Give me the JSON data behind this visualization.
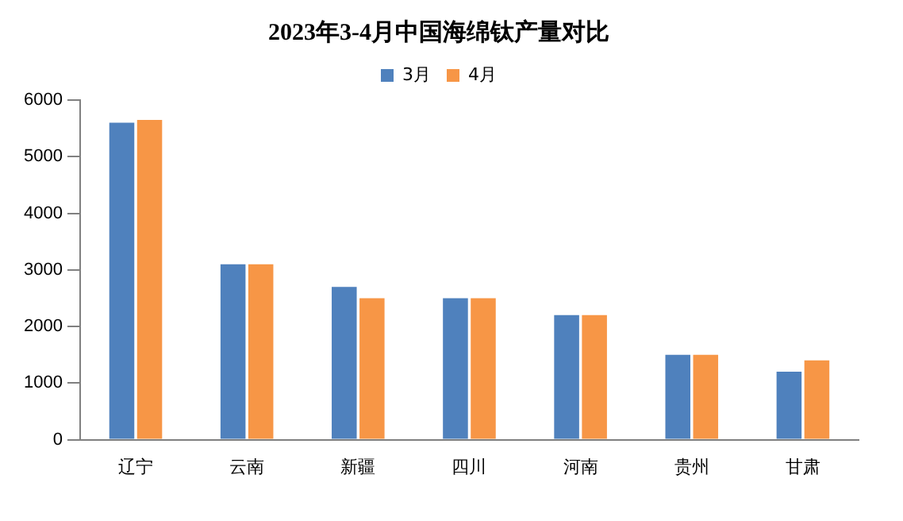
{
  "chart_data": {
    "type": "bar",
    "title": "2023年3-4月中国海绵钛产量对比",
    "categories": [
      "辽宁",
      "云南",
      "新疆",
      "四川",
      "河南",
      "贵州",
      "甘肃"
    ],
    "series": [
      {
        "name": "3月",
        "color": "#4f81bd",
        "values": [
          5600,
          3100,
          2700,
          2500,
          2200,
          1500,
          1200
        ]
      },
      {
        "name": "4月",
        "color": "#f79646",
        "values": [
          5650,
          3100,
          2500,
          2500,
          2200,
          1500,
          1400
        ]
      }
    ],
    "ylim": [
      0,
      6000
    ],
    "yticks": [
      0,
      1000,
      2000,
      3000,
      4000,
      5000,
      6000
    ],
    "grid": false,
    "legend": "top"
  }
}
